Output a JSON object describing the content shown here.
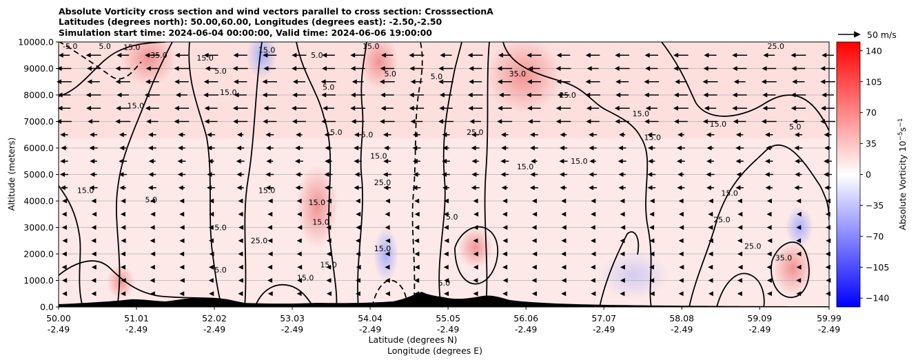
{
  "chart_data": {
    "type": "heatmap",
    "title_lines": [
      "Absolute Vorticity cross section and wind vectors parallel to cross section: CrosssectionA",
      "Latitudes (degrees north): 50.00,60.00, Longitudes (degrees east): -2.50,-2.50",
      "Simulation start time: 2024-06-04 00:00:00, Valid time: 2024-06-06 19:00:00"
    ],
    "ylabel": "Altitude (meters)",
    "xlabel_lines": [
      "Latitude (degrees N)",
      "Longitude (degrees E)"
    ],
    "ylim": [
      0,
      10000
    ],
    "xlim": [
      50.0,
      59.99
    ],
    "y_ticks": [
      0,
      1000,
      2000,
      3000,
      4000,
      5000,
      6000,
      7000,
      8000,
      9000,
      10000
    ],
    "y_tick_labels": [
      "0.0",
      "1000.0",
      "2000.0",
      "3000.0",
      "4000.0",
      "5000.0",
      "6000.0",
      "7000.0",
      "8000.0",
      "9000.0",
      "10000.0"
    ],
    "x_ticks": [
      {
        "lat": "50.00",
        "lon": "-2.49"
      },
      {
        "lat": "51.01",
        "lon": "-2.49"
      },
      {
        "lat": "52.02",
        "lon": "-2.49"
      },
      {
        "lat": "53.03",
        "lon": "-2.49"
      },
      {
        "lat": "54.04",
        "lon": "-2.49"
      },
      {
        "lat": "55.05",
        "lon": "-2.49"
      },
      {
        "lat": "56.06",
        "lon": "-2.49"
      },
      {
        "lat": "57.07",
        "lon": "-2.49"
      },
      {
        "lat": "58.08",
        "lon": "-2.49"
      },
      {
        "lat": "59.09",
        "lon": "-2.49"
      },
      {
        "lat": "59.99",
        "lon": "-2.49"
      }
    ],
    "grid": "horizontal",
    "colorbar": {
      "label": "Absolute Vorticity 10$^{-5}$s$^{-1}$",
      "label_main": "Absolute Vorticity 10",
      "label_exp1": "−5",
      "label_mid": "s",
      "label_exp2": "−1",
      "range": [
        -150,
        150
      ],
      "ticks": [
        140,
        105,
        70,
        35,
        0,
        -35,
        -70,
        -105,
        -140
      ],
      "tick_labels": [
        "140",
        "105",
        "70",
        "35",
        "0",
        "−35",
        "−70",
        "−105",
        "−140"
      ],
      "colormap": "bwr",
      "colors": {
        "low": "#0000ff",
        "mid": "#ffffff",
        "high": "#ff0000"
      }
    },
    "quiver_key": "50 m/s",
    "contour_labels": [
      {
        "text": "-5.0",
        "lat": 50.15,
        "alt": 9950
      },
      {
        "text": "5.0",
        "lat": 50.6,
        "alt": 9950
      },
      {
        "text": "15.0",
        "lat": 50.95,
        "alt": 9700
      },
      {
        "text": "35.0",
        "lat": 51.3,
        "alt": 9400
      },
      {
        "text": "15.0",
        "lat": 51.9,
        "alt": 9300
      },
      {
        "text": "5.0",
        "lat": 52.1,
        "alt": 8800
      },
      {
        "text": "15.0",
        "lat": 52.2,
        "alt": 8000
      },
      {
        "text": "15.0",
        "lat": 51.0,
        "alt": 7500
      },
      {
        "text": "15.0",
        "lat": 52.7,
        "alt": 9600
      },
      {
        "text": "5.0",
        "lat": 53.35,
        "alt": 9400
      },
      {
        "text": "5.0",
        "lat": 53.5,
        "alt": 8200
      },
      {
        "text": "15.0",
        "lat": 54.05,
        "alt": 9800
      },
      {
        "text": "5.0",
        "lat": 54.3,
        "alt": 8700
      },
      {
        "text": "5.0",
        "lat": 54.9,
        "alt": 8600
      },
      {
        "text": "35.0",
        "lat": 55.95,
        "alt": 8700
      },
      {
        "text": "25.0",
        "lat": 56.6,
        "alt": 7900
      },
      {
        "text": "15.0",
        "lat": 57.55,
        "alt": 7200
      },
      {
        "text": "15.0",
        "lat": 57.7,
        "alt": 6300
      },
      {
        "text": "15.0",
        "lat": 58.55,
        "alt": 6800
      },
      {
        "text": "5.0",
        "lat": 59.55,
        "alt": 6700
      },
      {
        "text": "25.0",
        "lat": 59.3,
        "alt": 9950
      },
      {
        "text": "5.0",
        "lat": 53.6,
        "alt": 6500
      },
      {
        "text": "5.0",
        "lat": 54.0,
        "alt": 6400
      },
      {
        "text": "15.0",
        "lat": 54.15,
        "alt": 5600
      },
      {
        "text": "25.0",
        "lat": 55.4,
        "alt": 6500
      },
      {
        "text": "15.0",
        "lat": 56.05,
        "alt": 5200
      },
      {
        "text": "15.0",
        "lat": 56.75,
        "alt": 5400
      },
      {
        "text": "25.0",
        "lat": 54.2,
        "alt": 4600
      },
      {
        "text": "5.0",
        "lat": 51.2,
        "alt": 3950
      },
      {
        "text": "15.0",
        "lat": 50.35,
        "alt": 4300
      },
      {
        "text": "15.0",
        "lat": 52.7,
        "alt": 4300
      },
      {
        "text": "15.0",
        "lat": 53.35,
        "alt": 3850
      },
      {
        "text": "15.0",
        "lat": 53.4,
        "alt": 3100
      },
      {
        "text": "5.0",
        "lat": 55.1,
        "alt": 3300
      },
      {
        "text": "15.0",
        "lat": 58.7,
        "alt": 4200
      },
      {
        "text": "25.0",
        "lat": 58.6,
        "alt": 3200
      },
      {
        "text": "5.0",
        "lat": 52.1,
        "alt": 2900
      },
      {
        "text": "25.0",
        "lat": 52.6,
        "alt": 2400
      },
      {
        "text": "15.0",
        "lat": 53.5,
        "alt": 1500
      },
      {
        "text": "15.0",
        "lat": 54.2,
        "alt": 2100
      },
      {
        "text": "25.0",
        "lat": 59.0,
        "alt": 2200
      },
      {
        "text": "35.0",
        "lat": 59.4,
        "alt": 1750
      },
      {
        "text": "5.0",
        "lat": 52.1,
        "alt": 1300
      },
      {
        "text": "5.0",
        "lat": 55.0,
        "alt": 800
      },
      {
        "text": "15.0",
        "lat": 53.2,
        "alt": 1000
      }
    ]
  }
}
